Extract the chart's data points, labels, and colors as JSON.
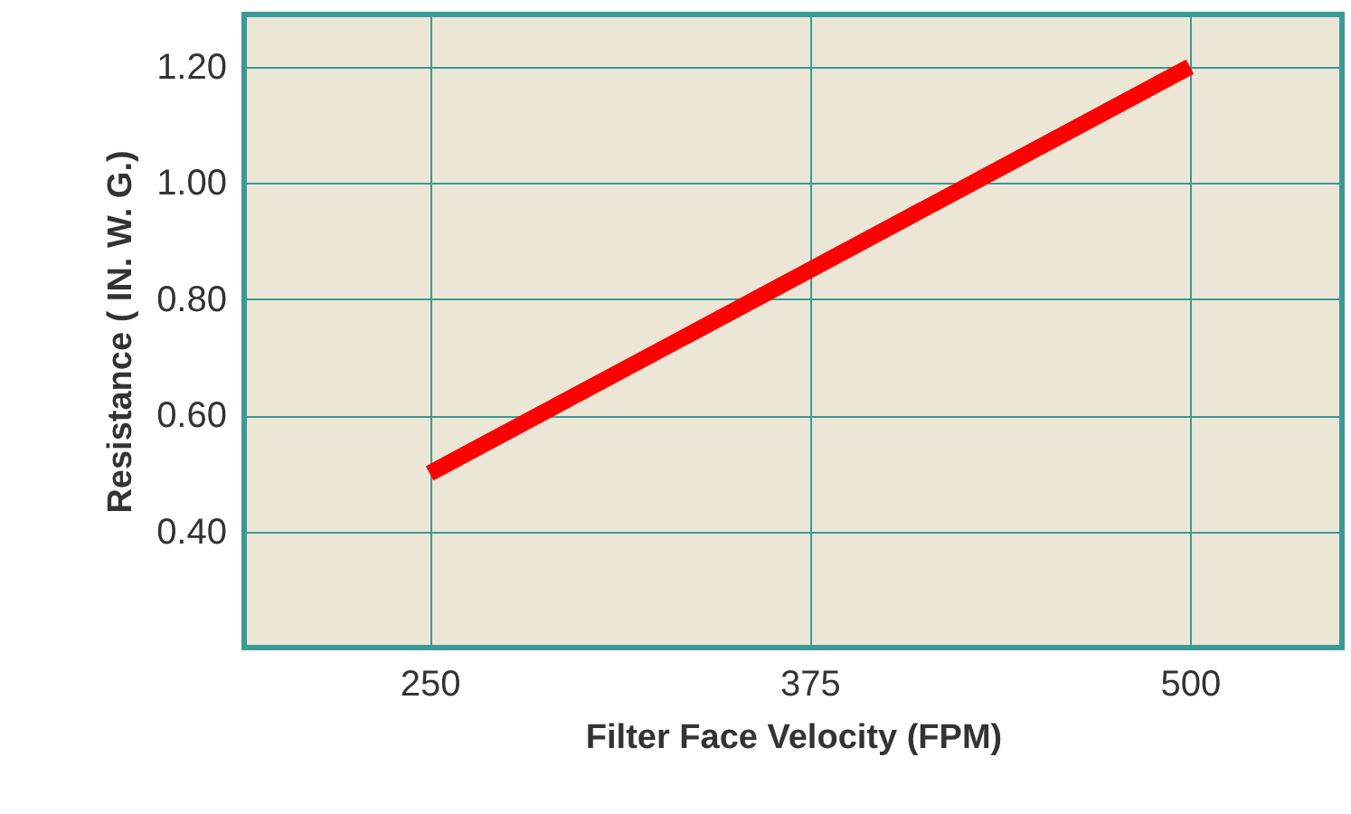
{
  "chart_data": {
    "type": "line",
    "xlabel": "Filter Face Velocity (FPM)",
    "ylabel": "Resistance ( IN. W. G.)",
    "x": [
      250,
      500
    ],
    "series": [
      {
        "color": "#ff0000",
        "values": [
          0.5,
          1.2
        ]
      }
    ],
    "xlim": [
      189,
      550
    ],
    "xticks": [
      250,
      375,
      500
    ],
    "ylim": [
      0.2,
      1.29
    ],
    "yticks": [
      {
        "value": 0.4,
        "label": "0.40"
      },
      {
        "value": 0.6,
        "label": "0.60"
      },
      {
        "value": 0.8,
        "label": "0.80"
      },
      {
        "value": 1.0,
        "label": "1.00"
      },
      {
        "value": 1.2,
        "label": "1.20"
      }
    ],
    "grid": true,
    "marker": "none",
    "line_style": "solid"
  }
}
